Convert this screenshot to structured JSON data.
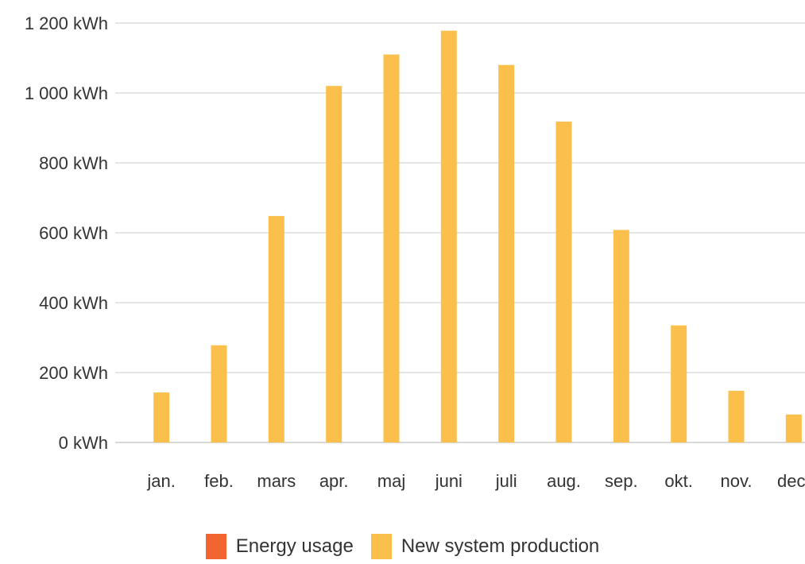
{
  "chart_data": {
    "type": "bar",
    "categories": [
      "jan.",
      "feb.",
      "mars",
      "apr.",
      "maj",
      "juni",
      "juli",
      "aug.",
      "sep.",
      "okt.",
      "nov.",
      "dec."
    ],
    "series": [
      {
        "name": "Energy usage",
        "color": "#f26430",
        "values": [
          0,
          0,
          0,
          0,
          0,
          0,
          0,
          0,
          0,
          0,
          0,
          0
        ]
      },
      {
        "name": "New system production",
        "color": "#fbbf4c",
        "values": [
          143,
          278,
          648,
          1020,
          1110,
          1178,
          1080,
          918,
          608,
          335,
          148,
          80
        ]
      }
    ],
    "yticks": [
      "0 kWh",
      "200 kWh",
      "400 kWh",
      "600 kWh",
      "800 kWh",
      "1 000 kWh",
      "1 200 kWh"
    ],
    "ytick_values": [
      0,
      200,
      400,
      600,
      800,
      1000,
      1200
    ],
    "ylim": [
      0,
      1200
    ],
    "grid": true,
    "legend_position": "bottom-center"
  }
}
